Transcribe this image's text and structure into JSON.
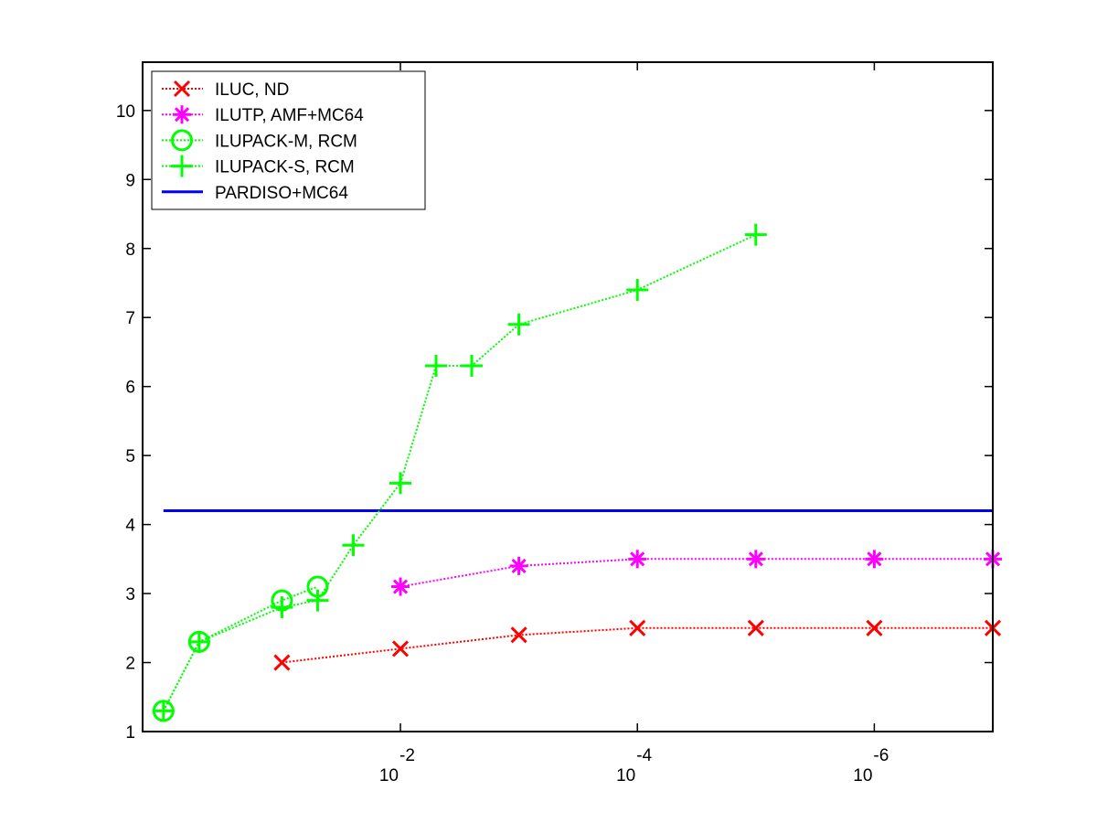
{
  "chart_data": {
    "type": "line",
    "title": "",
    "xlabel": "",
    "ylabel": "",
    "x_scale": "log",
    "x_direction": "decreasing",
    "xlim": [
      1.5,
      1e-07
    ],
    "ylim": [
      1,
      10.7
    ],
    "grid": false,
    "legend_position": "top-left",
    "x_ticks": [
      {
        "value": 0.01,
        "base": "10",
        "exponent": "-2"
      },
      {
        "value": 0.0001,
        "base": "10",
        "exponent": "-4"
      },
      {
        "value": 1e-06,
        "base": "10",
        "exponent": "-6"
      }
    ],
    "y_ticks": [
      "1",
      "2",
      "3",
      "4",
      "5",
      "6",
      "7",
      "8",
      "9",
      "10"
    ],
    "series": [
      {
        "name": "ILUC,  ND",
        "color": "#ff0000",
        "marker": "x",
        "line_style": "dotted",
        "points": [
          [
            0.1,
            2.0
          ],
          [
            0.01,
            2.2
          ],
          [
            0.001,
            2.4
          ],
          [
            0.0001,
            2.5
          ],
          [
            1e-05,
            2.5
          ],
          [
            1e-06,
            2.5
          ],
          [
            1e-07,
            2.5
          ]
        ]
      },
      {
        "name": "ILUTP, AMF+MC64",
        "color": "#ff00ff",
        "marker": "asterisk",
        "line_style": "dotted",
        "points": [
          [
            0.01,
            3.1
          ],
          [
            0.001,
            3.4
          ],
          [
            0.0001,
            3.5
          ],
          [
            1e-05,
            3.5
          ],
          [
            1e-06,
            3.5
          ],
          [
            1e-07,
            3.5
          ]
        ]
      },
      {
        "name": "ILUPACK-M, RCM",
        "color": "#00ff00",
        "marker": "circle",
        "line_style": "dotted",
        "points": [
          [
            1,
            1.3
          ],
          [
            0.5,
            2.3
          ],
          [
            0.1,
            2.9
          ],
          [
            0.05,
            3.1
          ]
        ]
      },
      {
        "name": "ILUPACK-S, RCM",
        "color": "#00ff00",
        "marker": "plus",
        "line_style": "dotted",
        "points": [
          [
            1,
            1.3
          ],
          [
            0.5,
            2.3
          ],
          [
            0.1,
            2.8
          ],
          [
            0.05,
            2.9
          ],
          [
            0.025,
            3.7
          ],
          [
            0.01,
            4.6
          ],
          [
            0.005,
            6.3
          ],
          [
            0.0025,
            6.3
          ],
          [
            0.001,
            6.9
          ],
          [
            0.0001,
            7.4
          ],
          [
            1e-05,
            8.2
          ]
        ]
      },
      {
        "name": "PARDISO+MC64",
        "color": "#0000ff",
        "marker": "none",
        "line_style": "solid",
        "points": [
          [
            1,
            4.2
          ],
          [
            1e-07,
            4.2
          ]
        ]
      }
    ]
  }
}
